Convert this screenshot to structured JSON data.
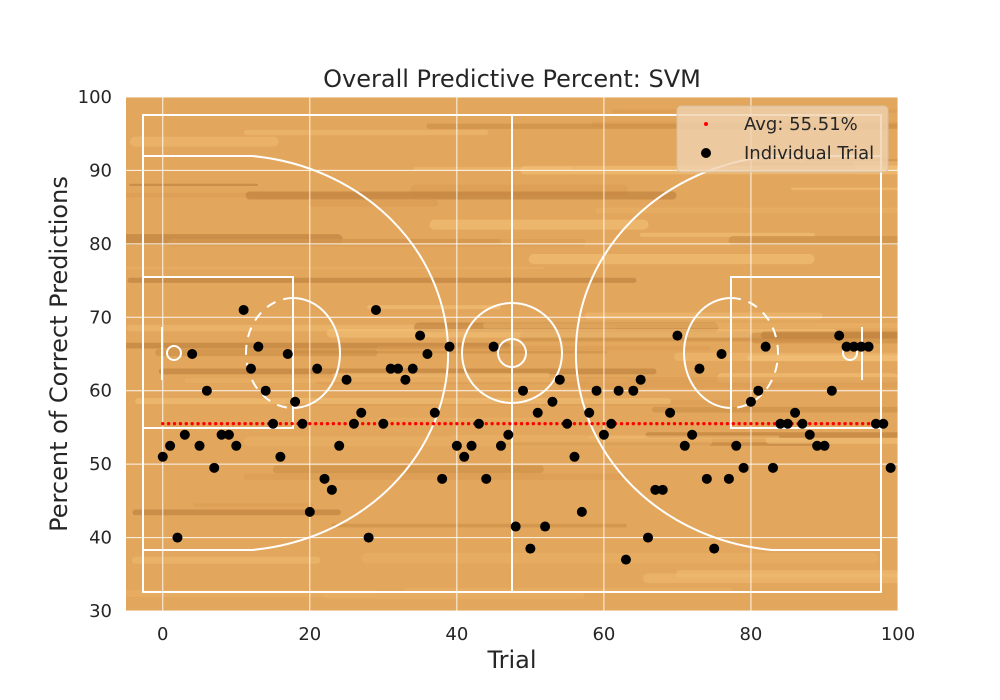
{
  "chart_data": {
    "type": "scatter",
    "title": "Overall Predictive Percent: SVM",
    "xlabel": "Trial",
    "ylabel": "Percent of Correct Predictions",
    "xlim": [
      -5,
      100
    ],
    "ylim": [
      30,
      100
    ],
    "xticks": [
      "0",
      "20",
      "40",
      "60",
      "80",
      "100"
    ],
    "yticks": [
      "30",
      "40",
      "50",
      "60",
      "70",
      "80",
      "90",
      "100"
    ],
    "grid": true,
    "legend_position": "top-right",
    "background": "basketball-court-wood",
    "series": [
      {
        "name": "Avg:  55.51%",
        "kind": "dotted-line",
        "color": "#ff0000",
        "y": 55.51,
        "x_range": [
          0,
          99
        ]
      },
      {
        "name": "Individual Trial",
        "kind": "scatter",
        "color": "#000000",
        "x": [
          0,
          1,
          2,
          3,
          4,
          5,
          6,
          7,
          8,
          9,
          10,
          11,
          12,
          13,
          14,
          15,
          16,
          17,
          18,
          19,
          20,
          21,
          22,
          23,
          24,
          25,
          26,
          27,
          28,
          29,
          30,
          31,
          32,
          33,
          34,
          35,
          36,
          37,
          38,
          39,
          40,
          41,
          42,
          43,
          44,
          45,
          46,
          47,
          48,
          49,
          50,
          51,
          52,
          53,
          54,
          55,
          56,
          57,
          58,
          59,
          60,
          61,
          62,
          63,
          64,
          65,
          66,
          67,
          68,
          69,
          70,
          71,
          72,
          73,
          74,
          75,
          76,
          77,
          78,
          79,
          80,
          81,
          82,
          83,
          84,
          85,
          86,
          87,
          88,
          89,
          90,
          91,
          92,
          93,
          94,
          95,
          96,
          97,
          98,
          99
        ],
        "y": [
          51,
          52.5,
          40,
          54,
          65,
          52.5,
          60,
          49.5,
          54,
          54,
          52.5,
          71,
          63,
          66,
          60,
          55.5,
          51,
          65,
          58.5,
          55.5,
          43.5,
          63,
          48,
          46.5,
          52.5,
          61.5,
          55.5,
          57,
          40,
          71,
          55.5,
          63,
          63,
          61.5,
          63,
          67.5,
          65,
          57,
          48,
          66,
          52.5,
          51,
          52.5,
          55.5,
          48,
          66,
          52.5,
          54,
          41.5,
          60,
          38.5,
          57,
          41.5,
          58.5,
          61.5,
          55.5,
          51,
          43.5,
          57,
          60,
          54,
          55.5,
          60,
          37,
          60,
          61.5,
          40,
          46.5,
          46.5,
          57,
          67.5,
          52.5,
          54,
          63,
          48,
          38.5,
          65,
          48,
          52.5,
          49.5,
          58.5,
          60,
          66,
          49.5,
          55.5,
          55.5,
          57,
          55.5,
          54,
          52.5,
          52.5,
          60,
          67.5,
          66,
          66,
          66,
          66,
          55.5,
          55.5,
          49.5
        ]
      }
    ]
  }
}
